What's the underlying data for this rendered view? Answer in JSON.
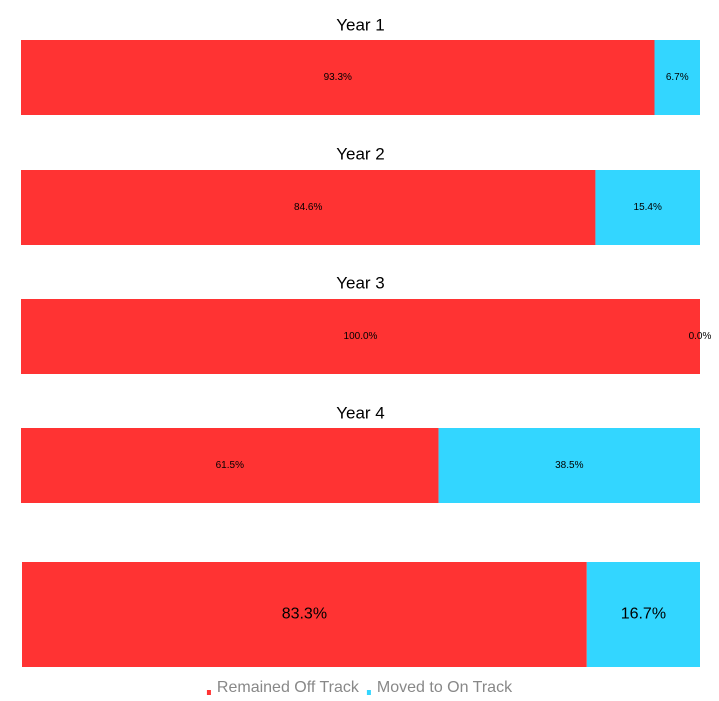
{
  "colors": {
    "remained": "#ff3333",
    "moved": "#33d6ff"
  },
  "chart_data": [
    {
      "type": "bar",
      "orientation": "horizontal-stacked-100",
      "title": "Year 1",
      "series": [
        {
          "name": "Remained Off Track",
          "values": [
            93.3
          ],
          "label": "93.3%"
        },
        {
          "name": "Moved to On Track",
          "values": [
            6.7
          ],
          "label": "6.7%"
        }
      ]
    },
    {
      "type": "bar",
      "orientation": "horizontal-stacked-100",
      "title": "Year 2",
      "series": [
        {
          "name": "Remained Off Track",
          "values": [
            84.6
          ],
          "label": "84.6%"
        },
        {
          "name": "Moved to On Track",
          "values": [
            15.4
          ],
          "label": "15.4%"
        }
      ]
    },
    {
      "type": "bar",
      "orientation": "horizontal-stacked-100",
      "title": "Year 3",
      "series": [
        {
          "name": "Remained Off Track",
          "values": [
            100.0
          ],
          "label": "100.0%"
        },
        {
          "name": "Moved to On Track",
          "values": [
            0.0
          ],
          "label": "0.0%"
        }
      ]
    },
    {
      "type": "bar",
      "orientation": "horizontal-stacked-100",
      "title": "Year 4",
      "series": [
        {
          "name": "Remained Off Track",
          "values": [
            61.5
          ],
          "label": "61.5%"
        },
        {
          "name": "Moved to On Track",
          "values": [
            38.5
          ],
          "label": "38.5%"
        }
      ]
    },
    {
      "type": "bar",
      "orientation": "horizontal-stacked-100",
      "title": "",
      "series": [
        {
          "name": "Remained Off Track",
          "values": [
            83.3
          ],
          "label": "83.3%"
        },
        {
          "name": "Moved to On Track",
          "values": [
            16.7
          ],
          "label": "16.7%"
        }
      ]
    }
  ],
  "legend": {
    "position": "bottom-center",
    "items": [
      {
        "label": "Remained Off Track",
        "color_key": "remained"
      },
      {
        "label": "Moved to On Track",
        "color_key": "moved"
      }
    ]
  }
}
